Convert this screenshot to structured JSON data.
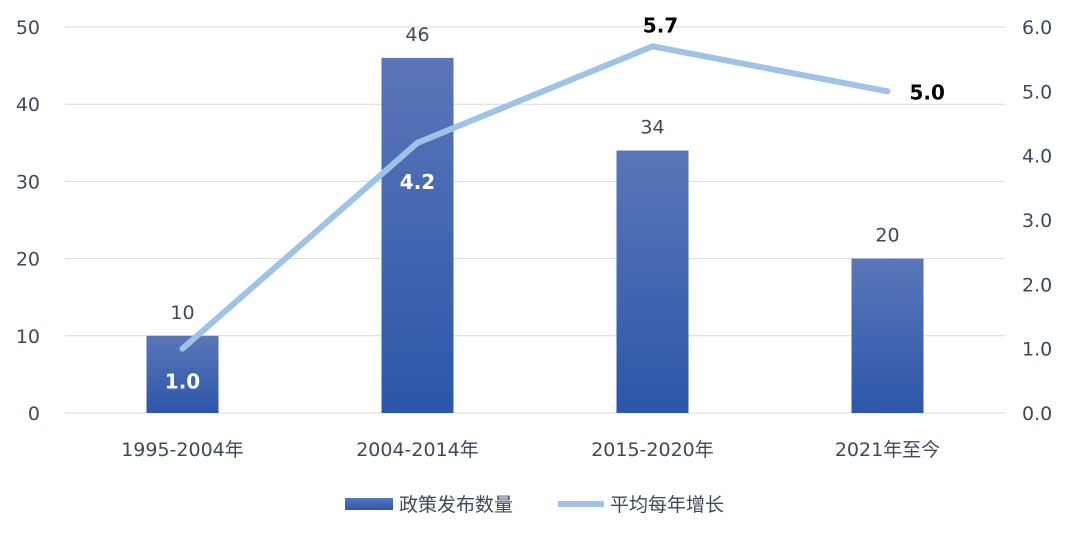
{
  "chart_data": {
    "type": "bar",
    "categories": [
      "1995-2004年",
      "2004-2014年",
      "2015-2020年",
      "2021年至今"
    ],
    "series": [
      {
        "name": "政策发布数量",
        "type": "bar",
        "axis": "left",
        "values": [
          10,
          46,
          34,
          20
        ],
        "labels": [
          "10",
          "46",
          "34",
          "20"
        ]
      },
      {
        "name": "平均每年增长",
        "type": "line",
        "axis": "right",
        "values": [
          1.0,
          4.2,
          5.7,
          5.0
        ],
        "labels": [
          "1.0",
          "4.2",
          "5.7",
          "5.0"
        ]
      }
    ],
    "y_left": {
      "min": 0,
      "max": 50,
      "ticks": [
        "0",
        "10",
        "20",
        "30",
        "40",
        "50"
      ]
    },
    "y_right": {
      "min": 0,
      "max": 6,
      "ticks": [
        "0.0",
        "1.0",
        "2.0",
        "3.0",
        "4.0",
        "5.0",
        "6.0"
      ]
    },
    "grid": true,
    "legend": "bottom-center",
    "colors": {
      "bar_top": "#5673b6",
      "bar_bottom": "#2a55a8",
      "line": "#9ec3e6",
      "grid": "#d9d9d9",
      "label_in_bar": "#ffffff",
      "label_dark": "#000000"
    }
  }
}
